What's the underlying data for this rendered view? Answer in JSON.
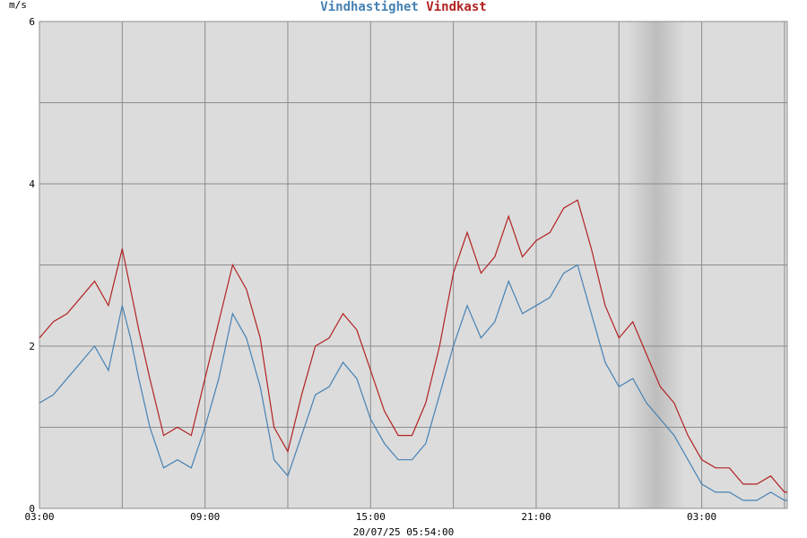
{
  "chart_data": {
    "type": "line",
    "title_parts": [
      {
        "text": "Vindhastighet",
        "color": "#4682b4"
      },
      {
        "text": "Vindkast",
        "color": "#b22222"
      }
    ],
    "ylabel": "m/s",
    "xlabel": "20/07/25 05:54:00",
    "ylim": [
      0,
      6
    ],
    "yticks": [
      0,
      2,
      4,
      6
    ],
    "x_unit": "hours",
    "xlim": [
      0,
      27.1
    ],
    "xticks": [
      {
        "x": 0,
        "label": "03:00"
      },
      {
        "x": 6,
        "label": "09:00"
      },
      {
        "x": 12,
        "label": "15:00"
      },
      {
        "x": 18,
        "label": "21:00"
      },
      {
        "x": 24,
        "label": "03:00"
      }
    ],
    "grid": true,
    "shaded_band": [
      21.3,
      23.4
    ],
    "series": [
      {
        "name": "Vindhastighet",
        "color": "#4682b4",
        "x": [
          0,
          0.5,
          1,
          1.5,
          2,
          2.5,
          3,
          3.3,
          3.6,
          4,
          4.5,
          5,
          5.5,
          6,
          6.5,
          7,
          7.5,
          8,
          8.5,
          9,
          9.5,
          10,
          10.5,
          11,
          11.5,
          12,
          12.5,
          13,
          13.5,
          14,
          14.5,
          15,
          15.5,
          16,
          16.5,
          17,
          17.5,
          18,
          18.5,
          19,
          19.5,
          20,
          20.5,
          21,
          21.5,
          22,
          22.5,
          23,
          23.5,
          24,
          24.5,
          25,
          25.5,
          26,
          26.5,
          27,
          27.1
        ],
        "y": [
          1.3,
          1.4,
          1.6,
          1.8,
          2.0,
          1.7,
          2.5,
          2.1,
          1.6,
          1.0,
          0.5,
          0.6,
          0.5,
          1.0,
          1.6,
          2.4,
          2.1,
          1.5,
          0.6,
          0.4,
          0.9,
          1.4,
          1.5,
          1.8,
          1.6,
          1.1,
          0.8,
          0.6,
          0.6,
          0.8,
          1.4,
          2.0,
          2.5,
          2.1,
          2.3,
          2.8,
          2.4,
          2.5,
          2.6,
          2.9,
          3.0,
          2.4,
          1.8,
          1.5,
          1.6,
          1.3,
          1.1,
          0.9,
          0.6,
          0.3,
          0.2,
          0.2,
          0.1,
          0.1,
          0.2,
          0.1,
          0.1
        ]
      },
      {
        "name": "Vindkast",
        "color": "#b22222",
        "x": [
          0,
          0.5,
          1,
          1.5,
          2,
          2.5,
          3,
          3.3,
          3.6,
          4,
          4.5,
          5,
          5.5,
          6,
          6.5,
          7,
          7.5,
          8,
          8.5,
          9,
          9.5,
          10,
          10.5,
          11,
          11.5,
          12,
          12.5,
          13,
          13.5,
          14,
          14.5,
          15,
          15.5,
          16,
          16.5,
          17,
          17.5,
          18,
          18.5,
          19,
          19.5,
          20,
          20.5,
          21,
          21.5,
          22,
          22.5,
          23,
          23.5,
          24,
          24.5,
          25,
          25.5,
          26,
          26.5,
          27,
          27.1
        ],
        "y": [
          2.1,
          2.3,
          2.4,
          2.6,
          2.8,
          2.5,
          3.2,
          2.7,
          2.2,
          1.6,
          0.9,
          1.0,
          0.9,
          1.6,
          2.3,
          3.0,
          2.7,
          2.1,
          1.0,
          0.7,
          1.4,
          2.0,
          2.1,
          2.4,
          2.2,
          1.7,
          1.2,
          0.9,
          0.9,
          1.3,
          2.0,
          2.9,
          3.4,
          2.9,
          3.1,
          3.6,
          3.1,
          3.3,
          3.4,
          3.7,
          3.8,
          3.2,
          2.5,
          2.1,
          2.3,
          1.9,
          1.5,
          1.3,
          0.9,
          0.6,
          0.5,
          0.5,
          0.3,
          0.3,
          0.4,
          0.2,
          0.2
        ]
      }
    ]
  }
}
